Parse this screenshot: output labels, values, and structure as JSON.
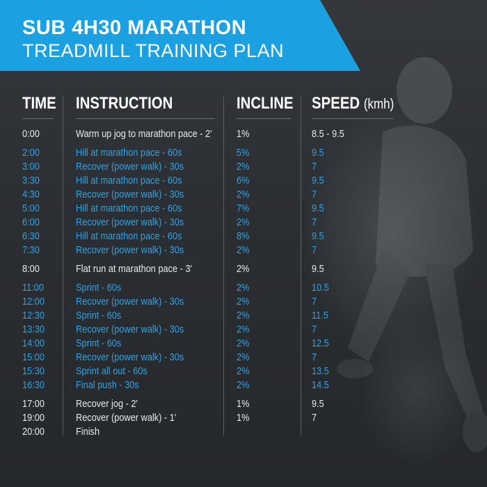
{
  "title": {
    "line1": "SUB 4H30  MARATHON",
    "line2": "TREADMILL TRAINING PLAN"
  },
  "columns": {
    "time": "TIME",
    "instruction": "INSTRUCTION",
    "incline": "INCLINE",
    "speed": "SPEED",
    "speed_unit": "(kmh)"
  },
  "colors": {
    "accent": "#1ba0e2",
    "row_blue": "#2ea3e6",
    "row_white": "#e9eaec",
    "background": "#2a2d31"
  },
  "rows": [
    {
      "time": "0:00",
      "instruction": "Warm up jog to marathon pace - 2'",
      "incline": "1%",
      "speed": "8.5 - 9.5",
      "style": "white"
    },
    {
      "time": "2:00",
      "instruction": "Hill at marathon pace - 60s",
      "incline": "5%",
      "speed": "9.5",
      "style": "blue"
    },
    {
      "time": "3:00",
      "instruction": "Recover (power walk) - 30s",
      "incline": "2%",
      "speed": "7",
      "style": "blue"
    },
    {
      "time": "3:30",
      "instruction": "Hill at marathon pace - 60s",
      "incline": "6%",
      "speed": "9.5",
      "style": "blue"
    },
    {
      "time": "4:30",
      "instruction": "Recover (power walk) - 30s",
      "incline": "2%",
      "speed": "7",
      "style": "blue"
    },
    {
      "time": "5:00",
      "instruction": "Hill at marathon pace - 60s",
      "incline": "7%",
      "speed": "9.5",
      "style": "blue"
    },
    {
      "time": "6:00",
      "instruction": "Recover (power walk) - 30s",
      "incline": "2%",
      "speed": "7",
      "style": "blue"
    },
    {
      "time": "6:30",
      "instruction": "Hill at marathon pace - 60s",
      "incline": "8%",
      "speed": "9.5",
      "style": "blue"
    },
    {
      "time": "7:30",
      "instruction": "Recover (power walk) - 30s",
      "incline": "2%",
      "speed": "7",
      "style": "blue"
    },
    {
      "time": "8:00",
      "instruction": "Flat run at marathon pace - 3'",
      "incline": "2%",
      "speed": "9.5",
      "style": "white"
    },
    {
      "time": "11:00",
      "instruction": "Sprint - 60s",
      "incline": "2%",
      "speed": "10.5",
      "style": "blue"
    },
    {
      "time": "12:00",
      "instruction": "Recover (power walk) - 30s",
      "incline": "2%",
      "speed": "7",
      "style": "blue"
    },
    {
      "time": "12:30",
      "instruction": "Sprint - 60s",
      "incline": "2%",
      "speed": "11.5",
      "style": "blue"
    },
    {
      "time": "13:30",
      "instruction": "Recover (power walk) - 30s",
      "incline": "2%",
      "speed": "7",
      "style": "blue"
    },
    {
      "time": "14:00",
      "instruction": "Sprint - 60s",
      "incline": "2%",
      "speed": "12.5",
      "style": "blue"
    },
    {
      "time": "15:00",
      "instruction": "Recover (power walk) - 30s",
      "incline": "2%",
      "speed": "7",
      "style": "blue"
    },
    {
      "time": "15:30",
      "instruction": "Sprint all out - 60s",
      "incline": "2%",
      "speed": "13.5",
      "style": "blue"
    },
    {
      "time": "16:30",
      "instruction": "Final push - 30s",
      "incline": "2%",
      "speed": "14.5",
      "style": "blue"
    },
    {
      "time": "17:00",
      "instruction": "Recover jog - 2'",
      "incline": "1%",
      "speed": "9.5",
      "style": "white"
    },
    {
      "time": "19:00",
      "instruction": "Recover (power walk) - 1'",
      "incline": "1%",
      "speed": "7",
      "style": "white"
    },
    {
      "time": "20:00",
      "instruction": "Finish",
      "incline": "",
      "speed": "",
      "style": "white"
    }
  ]
}
